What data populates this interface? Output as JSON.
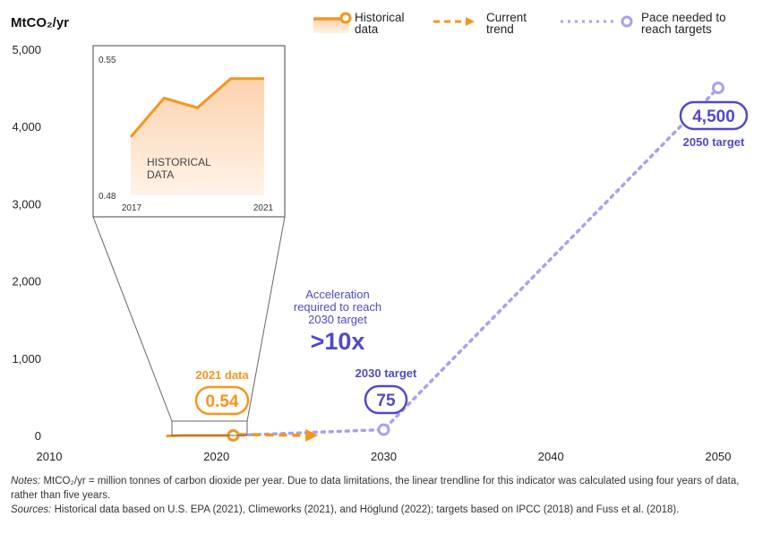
{
  "colors": {
    "historical": "#F7941D",
    "trend": "#F7941D",
    "pace": "#A7A2EC",
    "target_text": "#4F4AC9",
    "axis": "#222222",
    "grid": "#E6E6E6",
    "inset_fill_top": "#FBD2AE",
    "inset_fill_bottom": "#FFF3E8"
  },
  "chart_data": [
    {
      "type": "line",
      "ylabel": "MtCO₂/yr",
      "xlim": [
        2010,
        2050
      ],
      "ylim": [
        0,
        5000
      ],
      "x_ticks": [
        2010,
        2020,
        2030,
        2040,
        2050
      ],
      "y_ticks": [
        0,
        1000,
        2000,
        3000,
        4000,
        5000
      ],
      "y_tick_labels": [
        "0",
        "1,000",
        "2,000",
        "3,000",
        "4,000",
        "5,000"
      ],
      "grid": false,
      "legend_position": "top-right",
      "legend": [
        {
          "key": "historical",
          "label_lines": [
            "Historical",
            "data"
          ],
          "color": "#F7941D",
          "icon": "line-circle-area-icon"
        },
        {
          "key": "trend",
          "label_lines": [
            "Current",
            "trend"
          ],
          "color": "#F7941D",
          "icon": "dashed-arrow-icon"
        },
        {
          "key": "pace",
          "label_lines": [
            "Pace needed to",
            "reach targets"
          ],
          "color": "#A7A2EC",
          "icon": "dotted-circle-icon"
        }
      ],
      "series": [
        {
          "key": "historical",
          "name": "Historical data",
          "style": "solid",
          "x": [
            2017,
            2018,
            2019,
            2020,
            2021
          ],
          "y": [
            0.51,
            0.53,
            0.525,
            0.54,
            0.54
          ]
        },
        {
          "key": "trend",
          "name": "Current trend",
          "style": "dashed",
          "x": [
            2021,
            2025
          ],
          "y": [
            0.54,
            1
          ]
        },
        {
          "key": "pace",
          "name": "Pace needed to reach targets",
          "style": "dotted",
          "x": [
            2021,
            2030,
            2050
          ],
          "y": [
            0.54,
            75,
            4500
          ]
        }
      ],
      "callouts": [
        {
          "x": 2021,
          "y": 0.54,
          "title": "2021 data",
          "value": "0.54",
          "color": "#F7941D"
        },
        {
          "x": 2030,
          "y": 75,
          "title": "2030 target",
          "value": "75",
          "color": "#4F4AC9"
        },
        {
          "x": 2050,
          "y": 4500,
          "title": "2050 target",
          "value": "4,500",
          "color": "#4F4AC9"
        }
      ],
      "annotation": {
        "lines": [
          "Acceleration",
          "required to reach",
          "2030 target"
        ],
        "big": ">10x",
        "color": "#4F4AC9"
      }
    },
    {
      "type": "area",
      "label_lines": [
        "HISTORICAL",
        "DATA"
      ],
      "x": [
        2017,
        2018,
        2019,
        2020,
        2021
      ],
      "y": [
        0.51,
        0.53,
        0.525,
        0.54,
        0.54
      ],
      "ylim": [
        0.48,
        0.55
      ],
      "y_ticks": [
        "0.55",
        "0.48"
      ],
      "x_ticks": [
        "2017",
        "2021"
      ]
    }
  ],
  "notes": {
    "notes_label": "Notes:",
    "notes_text": "MtCO₂/yr = million tonnes of carbon dioxide per year. Due to data limitations, the linear trendline for this indicator was calculated using four years of data, rather than five years.",
    "sources_label": "Sources:",
    "sources_text": "Historical data based on U.S. EPA (2021), Climeworks (2021), and Höglund (2022); targets based on IPCC (2018) and Fuss et al. (2018)."
  }
}
